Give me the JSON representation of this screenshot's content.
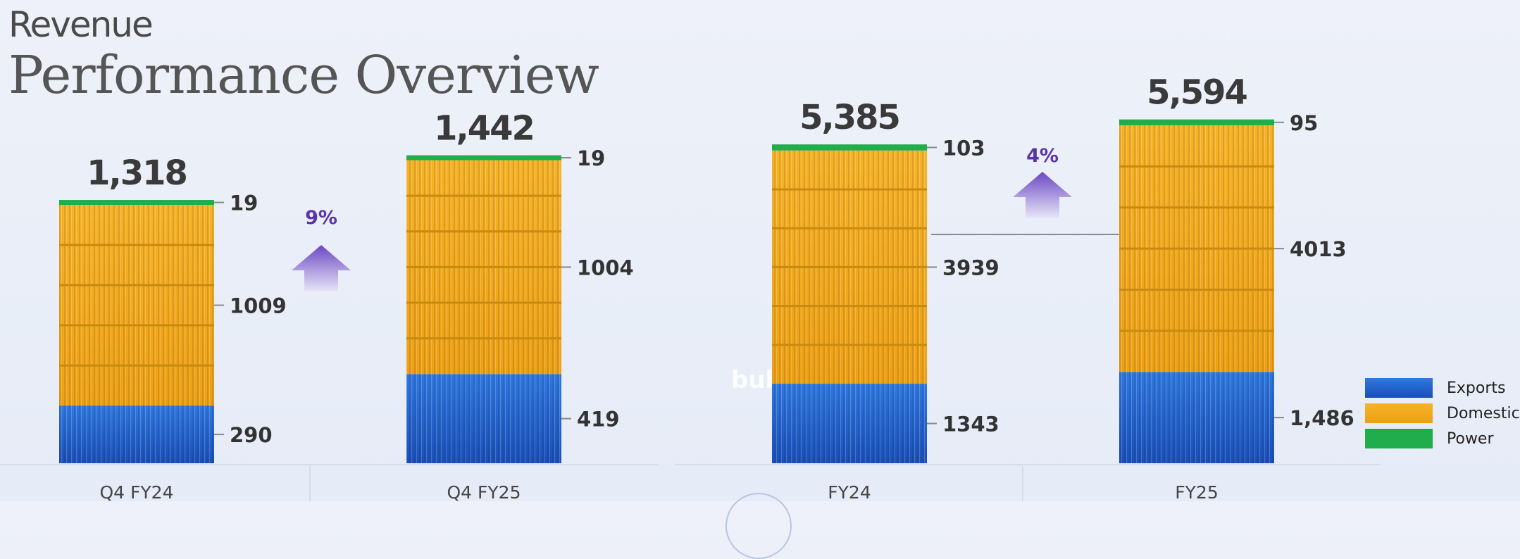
{
  "header": {
    "kicker": "Revenue",
    "title": "Performance Overview"
  },
  "watermark_text": "bul",
  "chart_data": {
    "type": "bar",
    "stacked": true,
    "categories": [
      "Q4 FY24",
      "Q4 FY25",
      "FY24",
      "FY25"
    ],
    "series": [
      {
        "name": "Exports",
        "values": [
          290,
          419,
          1343,
          1486
        ],
        "labels": [
          "290",
          "419",
          "1343",
          "1,486"
        ],
        "color": "#1f5cc4"
      },
      {
        "name": "Domestic",
        "values": [
          1009,
          1004,
          3939,
          4013
        ],
        "labels": [
          "1009",
          "1004",
          "3939",
          "4013"
        ],
        "color": "#f2a81d"
      },
      {
        "name": "Power",
        "values": [
          19,
          19,
          103,
          95
        ],
        "labels": [
          "19",
          "19",
          "103",
          "95"
        ],
        "color": "#21ad4b"
      }
    ],
    "totals": [
      "1,318",
      "1,442",
      "5,385",
      "5,594"
    ],
    "growth": [
      {
        "label": "9%",
        "between": [
          "Q4 FY24",
          "Q4 FY25"
        ]
      },
      {
        "label": "4%",
        "between": [
          "FY24",
          "FY25"
        ]
      }
    ],
    "legend": {
      "items": [
        "Exports",
        "Domestic",
        "Power"
      ],
      "position": "bottom-right"
    },
    "grid": false
  }
}
